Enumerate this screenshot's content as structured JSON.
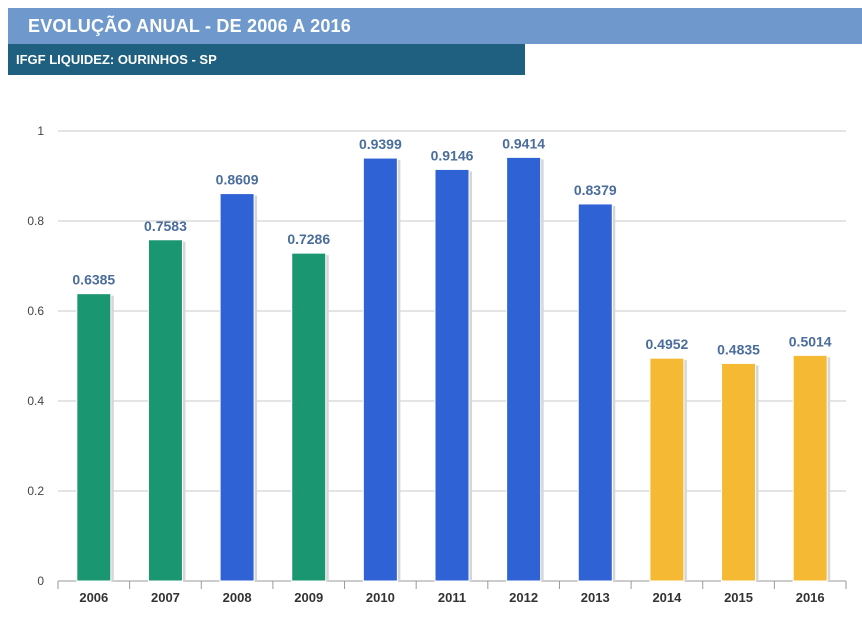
{
  "header": {
    "title": "EVOLUÇÃO ANUAL - DE 2006 A 2016",
    "subtitle": "IFGF LIQUIDEZ: OURINHOS - SP"
  },
  "colors": {
    "title_bar": "#6f99cd",
    "subtitle_bar": "#1f5f7f",
    "value_label": "#4a6d9c"
  },
  "chart_data": {
    "type": "bar",
    "title": "EVOLUÇÃO ANUAL - DE 2006 A 2016",
    "subtitle": "IFGF LIQUIDEZ: OURINHOS - SP",
    "xlabel": "",
    "ylabel": "",
    "categories": [
      "2006",
      "2007",
      "2008",
      "2009",
      "2010",
      "2011",
      "2012",
      "2013",
      "2014",
      "2015",
      "2016"
    ],
    "values": [
      0.6385,
      0.7583,
      0.8609,
      0.7286,
      0.9399,
      0.9146,
      0.9414,
      0.8379,
      0.4952,
      0.4835,
      0.5014
    ],
    "value_labels": [
      "0.6385",
      "0.7583",
      "0.8609",
      "0.7286",
      "0.9399",
      "0.9146",
      "0.9414",
      "0.8379",
      "0.4952",
      "0.4835",
      "0.5014"
    ],
    "bar_colors": [
      "#1a9670",
      "#1a9670",
      "#2f62d4",
      "#1a9670",
      "#2f62d4",
      "#2f62d4",
      "#2f62d4",
      "#2f62d4",
      "#f6b933",
      "#f6b933",
      "#f6b933"
    ],
    "ylim": [
      0,
      1
    ],
    "yticks": [
      0,
      0.2,
      0.4,
      0.6,
      0.8,
      1
    ],
    "ytick_labels": [
      "0",
      "0.2",
      "0.4",
      "0.6",
      "0.8",
      "1"
    ],
    "grid": true,
    "legend": "none"
  }
}
